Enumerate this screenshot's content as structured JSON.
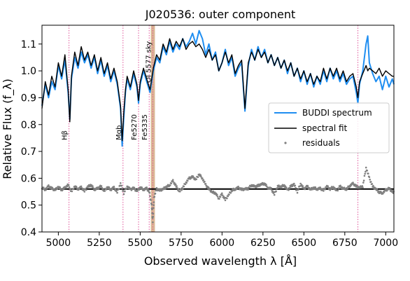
{
  "chart_data": {
    "type": "line",
    "title": "J020536: outer component",
    "xlabel": "Observed wavelength λ [Å]",
    "ylabel": "Relative Flux (f_λ)",
    "xlim": [
      4900,
      7050
    ],
    "ylim": [
      0.4,
      1.17
    ],
    "xticks": [
      5000,
      5250,
      5500,
      5750,
      6000,
      6250,
      6500,
      6750,
      7000
    ],
    "yticks": [
      0.4,
      0.5,
      0.6,
      0.7,
      0.8,
      0.9,
      1.0,
      1.1
    ],
    "legend": {
      "position": "right",
      "entries": [
        "BUDDI spectrum",
        "spectral fit",
        "residuals"
      ]
    },
    "colors": {
      "spectrum": "#1f8ef1",
      "fit": "#000000",
      "residuals": "#808080",
      "lines": "#e0559a",
      "masked_band": "#d2a67a"
    },
    "masked_band": [
      5565,
      5590
    ],
    "residual_offset": 0.56,
    "spectral_lines": [
      {
        "name": "Hβ",
        "x": 5065
      },
      {
        "name": "Mgb",
        "x": 5395
      },
      {
        "name": "Fe5270",
        "x": 5490
      },
      {
        "name": "Fe5335",
        "x": 5555
      },
      {
        "name": "OI 5577 sky",
        "x": 5577
      },
      {
        "name": "",
        "x": 6830
      }
    ],
    "spectrum": {
      "x": [
        4900,
        4920,
        4940,
        4960,
        4980,
        5000,
        5020,
        5040,
        5060,
        5070,
        5080,
        5100,
        5120,
        5140,
        5160,
        5180,
        5200,
        5220,
        5240,
        5260,
        5280,
        5300,
        5320,
        5340,
        5360,
        5380,
        5390,
        5400,
        5410,
        5420,
        5440,
        5460,
        5480,
        5490,
        5500,
        5520,
        5540,
        5560,
        5580,
        5600,
        5620,
        5640,
        5660,
        5680,
        5700,
        5720,
        5740,
        5760,
        5780,
        5800,
        5820,
        5840,
        5860,
        5880,
        5900,
        5920,
        5940,
        5960,
        5980,
        6000,
        6020,
        6040,
        6060,
        6080,
        6100,
        6120,
        6140,
        6160,
        6180,
        6200,
        6220,
        6240,
        6260,
        6280,
        6300,
        6320,
        6340,
        6360,
        6380,
        6400,
        6420,
        6440,
        6460,
        6480,
        6500,
        6520,
        6540,
        6560,
        6580,
        6600,
        6620,
        6640,
        6660,
        6680,
        6700,
        6720,
        6740,
        6760,
        6780,
        6800,
        6820,
        6830,
        6840,
        6860,
        6880,
        6890,
        6900,
        6920,
        6940,
        6960,
        6980,
        7000,
        7020,
        7040,
        7050
      ],
      "y": [
        0.87,
        0.95,
        0.9,
        0.96,
        0.93,
        1.02,
        0.97,
        1.04,
        0.92,
        0.82,
        0.97,
        1.05,
        1.01,
        1.07,
        1.03,
        1.06,
        1.01,
        1.05,
        0.99,
        1.04,
        0.98,
        1.02,
        0.96,
        1.0,
        0.95,
        0.86,
        0.72,
        0.83,
        0.92,
        0.97,
        0.93,
        0.99,
        0.94,
        0.88,
        0.95,
        1.0,
        0.96,
        0.92,
        1.0,
        1.05,
        1.03,
        1.09,
        1.06,
        1.11,
        1.07,
        1.1,
        1.08,
        1.12,
        1.09,
        1.11,
        1.14,
        1.1,
        1.15,
        1.12,
        1.06,
        1.1,
        1.04,
        1.07,
        1.0,
        1.03,
        1.08,
        1.02,
        1.05,
        0.98,
        1.01,
        1.03,
        0.85,
        1.02,
        1.08,
        1.04,
        1.09,
        1.05,
        1.08,
        1.03,
        1.06,
        1.02,
        1.05,
        1.01,
        1.04,
        0.99,
        1.03,
        0.98,
        1.01,
        0.96,
        1.0,
        0.95,
        0.99,
        0.94,
        0.98,
        0.95,
        1.0,
        0.96,
        1.01,
        0.97,
        1.0,
        0.96,
        0.99,
        0.95,
        0.97,
        0.98,
        0.92,
        0.88,
        0.95,
        1.0,
        1.1,
        1.13,
        1.03,
        0.99,
        0.96,
        0.98,
        0.93,
        0.98,
        0.94,
        0.97,
        0.95
      ]
    },
    "fit": {
      "x": [
        4900,
        4920,
        4940,
        4960,
        4980,
        5000,
        5020,
        5040,
        5060,
        5070,
        5080,
        5100,
        5120,
        5140,
        5160,
        5180,
        5200,
        5220,
        5240,
        5260,
        5280,
        5300,
        5320,
        5340,
        5360,
        5380,
        5390,
        5400,
        5410,
        5420,
        5440,
        5460,
        5480,
        5490,
        5500,
        5520,
        5540,
        5560,
        5580,
        5600,
        5620,
        5640,
        5660,
        5680,
        5700,
        5720,
        5740,
        5760,
        5780,
        5800,
        5820,
        5840,
        5860,
        5880,
        5900,
        5920,
        5940,
        5960,
        5980,
        6000,
        6020,
        6040,
        6060,
        6080,
        6100,
        6120,
        6140,
        6160,
        6180,
        6200,
        6220,
        6240,
        6260,
        6280,
        6300,
        6320,
        6340,
        6360,
        6380,
        6400,
        6420,
        6440,
        6460,
        6480,
        6500,
        6520,
        6540,
        6560,
        6580,
        6600,
        6620,
        6640,
        6660,
        6680,
        6700,
        6720,
        6740,
        6760,
        6780,
        6800,
        6820,
        6830,
        6840,
        6860,
        6880,
        6890,
        6900,
        6920,
        6940,
        6960,
        6980,
        7000,
        7020,
        7040,
        7050
      ],
      "y": [
        0.86,
        0.96,
        0.91,
        0.98,
        0.94,
        1.03,
        0.98,
        1.06,
        0.93,
        0.81,
        0.98,
        1.07,
        1.02,
        1.09,
        1.04,
        1.07,
        1.02,
        1.06,
        1.0,
        1.05,
        0.99,
        1.03,
        0.97,
        1.01,
        0.96,
        0.87,
        0.74,
        0.85,
        0.93,
        0.98,
        0.94,
        1.0,
        0.95,
        0.89,
        0.96,
        1.01,
        0.97,
        0.93,
        1.01,
        1.06,
        1.04,
        1.1,
        1.07,
        1.12,
        1.08,
        1.11,
        1.09,
        1.12,
        1.08,
        1.1,
        1.11,
        1.09,
        1.1,
        1.08,
        1.05,
        1.08,
        1.04,
        1.06,
        1.0,
        1.03,
        1.07,
        1.03,
        1.06,
        0.99,
        1.02,
        1.04,
        0.86,
        1.03,
        1.07,
        1.04,
        1.08,
        1.05,
        1.07,
        1.03,
        1.06,
        1.02,
        1.05,
        1.01,
        1.04,
        1.0,
        1.03,
        0.98,
        1.01,
        0.97,
        1.0,
        0.96,
        0.99,
        0.95,
        0.98,
        0.96,
        1.01,
        0.97,
        1.01,
        0.98,
        1.01,
        0.97,
        1.0,
        0.96,
        0.98,
        0.99,
        0.94,
        0.9,
        0.96,
        0.99,
        1.02,
        1.0,
        1.01,
        1.0,
        0.99,
        1.01,
        0.98,
        1.0,
        0.99,
        0.98,
        0.98
      ]
    },
    "residuals": {
      "x": [
        4900,
        4920,
        4940,
        4960,
        4980,
        5000,
        5020,
        5040,
        5060,
        5080,
        5100,
        5120,
        5140,
        5160,
        5180,
        5200,
        5220,
        5240,
        5260,
        5280,
        5300,
        5320,
        5340,
        5360,
        5380,
        5400,
        5420,
        5440,
        5460,
        5480,
        5500,
        5520,
        5540,
        5555,
        5570,
        5577,
        5585,
        5600,
        5620,
        5640,
        5660,
        5680,
        5700,
        5720,
        5740,
        5760,
        5780,
        5800,
        5820,
        5840,
        5860,
        5880,
        5900,
        5920,
        5940,
        5960,
        5980,
        6000,
        6020,
        6040,
        6060,
        6080,
        6100,
        6120,
        6140,
        6160,
        6180,
        6200,
        6220,
        6240,
        6260,
        6280,
        6300,
        6320,
        6340,
        6360,
        6380,
        6400,
        6420,
        6440,
        6460,
        6480,
        6500,
        6520,
        6540,
        6560,
        6580,
        6600,
        6620,
        6640,
        6660,
        6680,
        6700,
        6720,
        6740,
        6760,
        6780,
        6800,
        6820,
        6840,
        6860,
        6880,
        6900,
        6920,
        6940,
        6960,
        6980,
        7000,
        7020,
        7040,
        7050
      ],
      "y": [
        0.565,
        0.558,
        0.57,
        0.562,
        0.556,
        0.568,
        0.557,
        0.564,
        0.575,
        0.55,
        0.57,
        0.56,
        0.566,
        0.552,
        0.569,
        0.575,
        0.558,
        0.562,
        0.57,
        0.552,
        0.567,
        0.558,
        0.565,
        0.548,
        0.58,
        0.545,
        0.57,
        0.558,
        0.563,
        0.552,
        0.566,
        0.558,
        0.562,
        0.55,
        0.5,
        0.44,
        0.53,
        0.56,
        0.555,
        0.56,
        0.568,
        0.575,
        0.59,
        0.57,
        0.55,
        0.565,
        0.585,
        0.6,
        0.605,
        0.595,
        0.615,
        0.6,
        0.575,
        0.56,
        0.548,
        0.545,
        0.525,
        0.54,
        0.52,
        0.538,
        0.555,
        0.56,
        0.565,
        0.558,
        0.56,
        0.562,
        0.575,
        0.568,
        0.572,
        0.578,
        0.58,
        0.565,
        0.56,
        0.54,
        0.57,
        0.568,
        0.575,
        0.555,
        0.57,
        0.578,
        0.55,
        0.58,
        0.56,
        0.57,
        0.558,
        0.565,
        0.56,
        0.562,
        0.555,
        0.57,
        0.56,
        0.568,
        0.552,
        0.57,
        0.562,
        0.56,
        0.572,
        0.58,
        0.57,
        0.565,
        0.57,
        0.64,
        0.6,
        0.57,
        0.56,
        0.548,
        0.545,
        0.555,
        0.562,
        0.55,
        0.548
      ]
    }
  }
}
